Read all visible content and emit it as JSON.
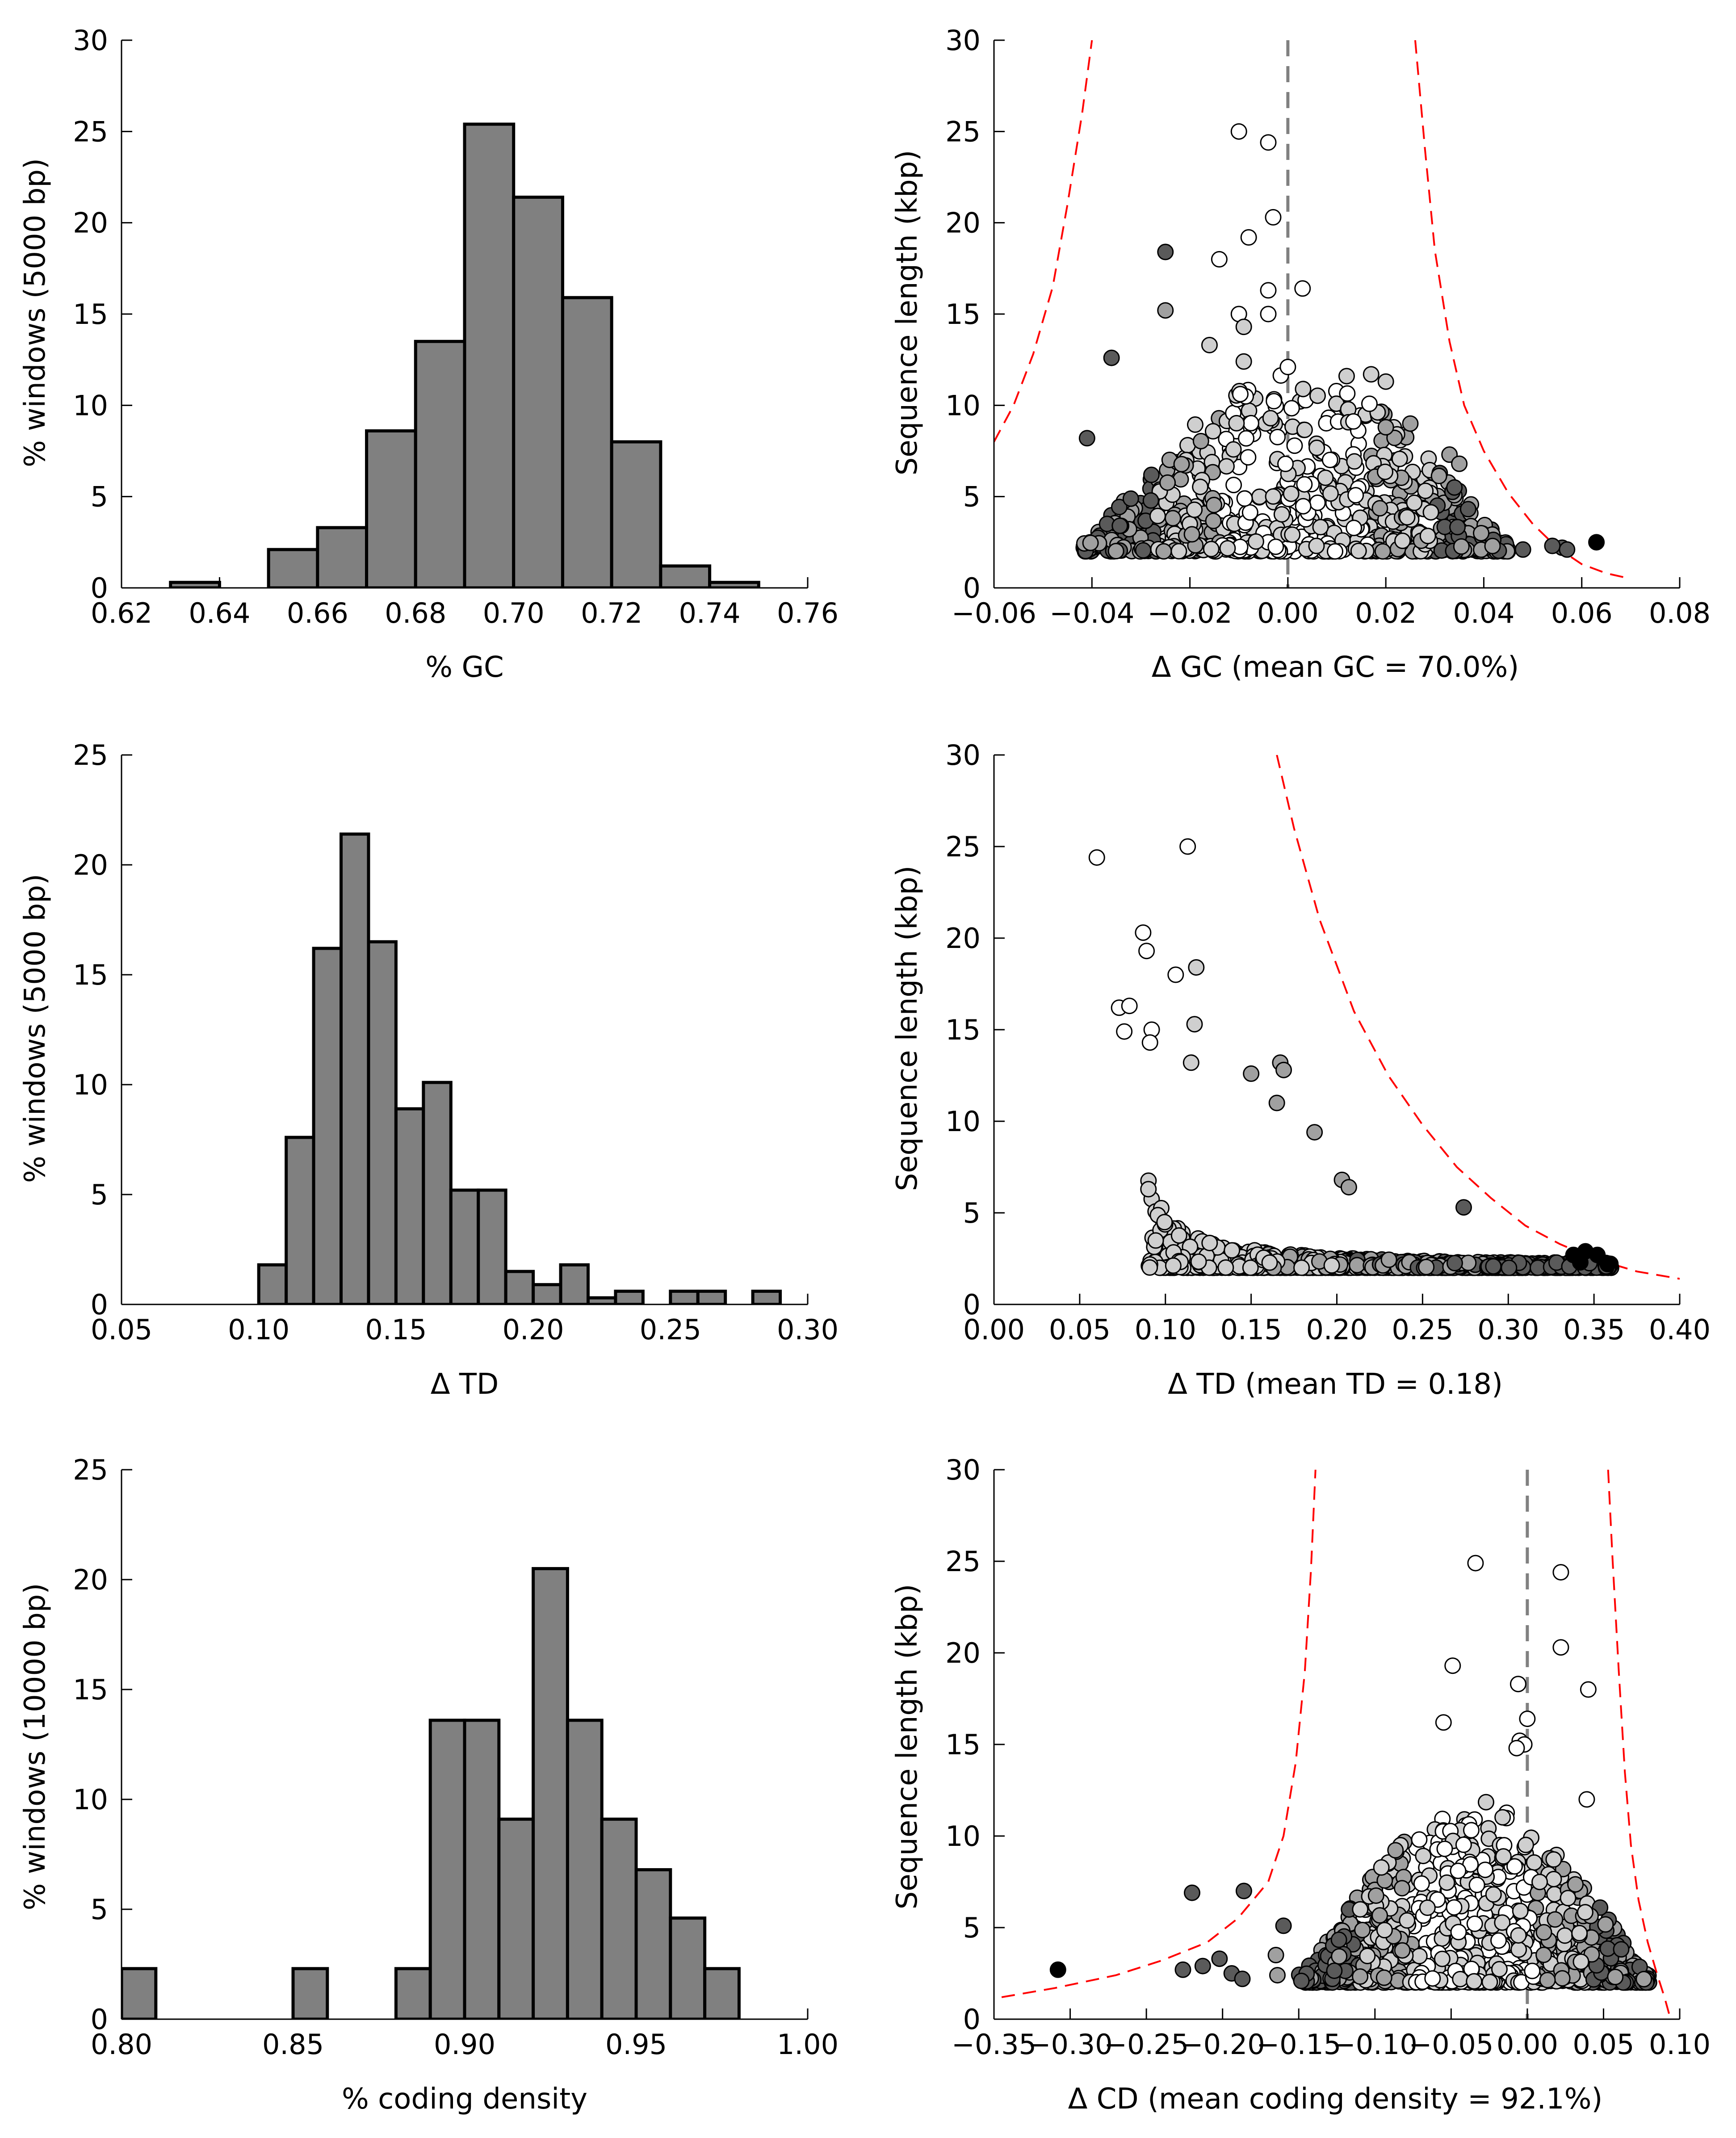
{
  "chart_data": [
    {
      "id": "gc-hist",
      "type": "bar",
      "xlabel": "% GC",
      "ylabel": "% windows (5000 bp)",
      "xlim": [
        0.62,
        0.76
      ],
      "ylim": [
        0,
        30
      ],
      "xticks": [
        "0.62",
        "0.64",
        "0.66",
        "0.68",
        "0.70",
        "0.72",
        "0.74",
        "0.76"
      ],
      "yticks": [
        "0",
        "5",
        "10",
        "15",
        "20",
        "25",
        "30"
      ],
      "bar_color": "#808080",
      "bins": [
        {
          "x0": 0.63,
          "x1": 0.64,
          "value": 0.3
        },
        {
          "x0": 0.65,
          "x1": 0.66,
          "value": 2.1
        },
        {
          "x0": 0.66,
          "x1": 0.67,
          "value": 3.3
        },
        {
          "x0": 0.67,
          "x1": 0.68,
          "value": 8.6
        },
        {
          "x0": 0.68,
          "x1": 0.69,
          "value": 13.5
        },
        {
          "x0": 0.69,
          "x1": 0.7,
          "value": 25.4
        },
        {
          "x0": 0.7,
          "x1": 0.71,
          "value": 21.4
        },
        {
          "x0": 0.71,
          "x1": 0.72,
          "value": 15.9
        },
        {
          "x0": 0.72,
          "x1": 0.73,
          "value": 8.0
        },
        {
          "x0": 0.73,
          "x1": 0.74,
          "value": 1.2
        },
        {
          "x0": 0.74,
          "x1": 0.75,
          "value": 0.3
        }
      ]
    },
    {
      "id": "gc-scatter",
      "type": "scatter",
      "xlabel": "Δ GC (mean GC = 70.0%)",
      "ylabel": "Sequence length (kbp)",
      "xlim": [
        -0.06,
        0.08
      ],
      "ylim": [
        0,
        30
      ],
      "xticks": [
        "−0.06",
        "−0.04",
        "−0.02",
        "0.00",
        "0.02",
        "0.04",
        "0.06",
        "0.08"
      ],
      "yticks": [
        "0",
        "5",
        "10",
        "15",
        "20",
        "25",
        "30"
      ],
      "vline": 0.0,
      "bound_color": "#ff0000",
      "bound_left": [
        [
          -0.06,
          8.0
        ],
        [
          -0.056,
          10.0
        ],
        [
          -0.052,
          12.8
        ],
        [
          -0.048,
          16.5
        ],
        [
          -0.045,
          21.0
        ],
        [
          -0.042,
          26.0
        ],
        [
          -0.04,
          30.0
        ]
      ],
      "bound_right": [
        [
          0.026,
          30.0
        ],
        [
          0.028,
          24.0
        ],
        [
          0.03,
          18.5
        ],
        [
          0.033,
          13.5
        ],
        [
          0.036,
          10.0
        ],
        [
          0.04,
          7.5
        ],
        [
          0.045,
          5.2
        ],
        [
          0.05,
          3.5
        ],
        [
          0.055,
          2.2
        ],
        [
          0.06,
          1.3
        ],
        [
          0.065,
          0.8
        ],
        [
          0.07,
          0.5
        ]
      ],
      "cloud": {
        "xmin": -0.042,
        "xmax": 0.045,
        "ymin": 2.0,
        "ymax": 12.0,
        "count": 780
      },
      "points": [
        {
          "x": -0.01,
          "y": 25.0,
          "tone": "white"
        },
        {
          "x": -0.004,
          "y": 24.4,
          "tone": "white"
        },
        {
          "x": -0.003,
          "y": 20.3,
          "tone": "white"
        },
        {
          "x": -0.008,
          "y": 19.2,
          "tone": "white"
        },
        {
          "x": -0.014,
          "y": 18.0,
          "tone": "white"
        },
        {
          "x": -0.025,
          "y": 18.4,
          "tone": "dark"
        },
        {
          "x": 0.003,
          "y": 16.4,
          "tone": "white"
        },
        {
          "x": -0.004,
          "y": 16.3,
          "tone": "white"
        },
        {
          "x": -0.025,
          "y": 15.2,
          "tone": "gray"
        },
        {
          "x": -0.01,
          "y": 15.0,
          "tone": "white"
        },
        {
          "x": -0.004,
          "y": 15.0,
          "tone": "white"
        },
        {
          "x": -0.009,
          "y": 14.3,
          "tone": "light"
        },
        {
          "x": -0.016,
          "y": 13.3,
          "tone": "light"
        },
        {
          "x": -0.036,
          "y": 12.6,
          "tone": "dark"
        },
        {
          "x": -0.009,
          "y": 12.4,
          "tone": "light"
        },
        {
          "x": 0.0,
          "y": 12.1,
          "tone": "white"
        },
        {
          "x": -0.041,
          "y": 8.2,
          "tone": "dark"
        },
        {
          "x": 0.063,
          "y": 2.5,
          "tone": "black"
        },
        {
          "x": 0.056,
          "y": 2.2,
          "tone": "dark"
        },
        {
          "x": 0.054,
          "y": 2.3,
          "tone": "dark"
        },
        {
          "x": 0.057,
          "y": 2.1,
          "tone": "dark"
        },
        {
          "x": 0.048,
          "y": 2.1,
          "tone": "dark"
        },
        {
          "x": 0.034,
          "y": 5.5,
          "tone": "dark"
        },
        {
          "x": 0.033,
          "y": 7.3,
          "tone": "gray"
        },
        {
          "x": 0.035,
          "y": 6.8,
          "tone": "gray"
        },
        {
          "x": 0.025,
          "y": 9.0,
          "tone": "gray"
        },
        {
          "x": 0.02,
          "y": 8.8,
          "tone": "gray"
        },
        {
          "x": 0.017,
          "y": 11.7,
          "tone": "light"
        },
        {
          "x": 0.012,
          "y": 11.6,
          "tone": "light"
        },
        {
          "x": 0.02,
          "y": 11.3,
          "tone": "light"
        }
      ]
    },
    {
      "id": "td-hist",
      "type": "bar",
      "xlabel": "Δ TD",
      "ylabel": "% windows (5000 bp)",
      "xlim": [
        0.05,
        0.3
      ],
      "ylim": [
        0,
        25
      ],
      "xticks": [
        "0.05",
        "0.10",
        "0.15",
        "0.20",
        "0.25",
        "0.30"
      ],
      "yticks": [
        "0",
        "5",
        "10",
        "15",
        "20",
        "25"
      ],
      "bar_color": "#808080",
      "bins": [
        {
          "x0": 0.1,
          "x1": 0.11,
          "value": 1.8
        },
        {
          "x0": 0.11,
          "x1": 0.12,
          "value": 7.6
        },
        {
          "x0": 0.12,
          "x1": 0.13,
          "value": 16.2
        },
        {
          "x0": 0.13,
          "x1": 0.14,
          "value": 21.4
        },
        {
          "x0": 0.14,
          "x1": 0.15,
          "value": 16.5
        },
        {
          "x0": 0.15,
          "x1": 0.16,
          "value": 8.9
        },
        {
          "x0": 0.16,
          "x1": 0.17,
          "value": 10.1
        },
        {
          "x0": 0.17,
          "x1": 0.18,
          "value": 5.2
        },
        {
          "x0": 0.18,
          "x1": 0.19,
          "value": 5.2
        },
        {
          "x0": 0.19,
          "x1": 0.2,
          "value": 1.5
        },
        {
          "x0": 0.2,
          "x1": 0.21,
          "value": 0.9
        },
        {
          "x0": 0.21,
          "x1": 0.22,
          "value": 1.8
        },
        {
          "x0": 0.22,
          "x1": 0.23,
          "value": 0.3
        },
        {
          "x0": 0.23,
          "x1": 0.24,
          "value": 0.6
        },
        {
          "x0": 0.25,
          "x1": 0.26,
          "value": 0.6
        },
        {
          "x0": 0.26,
          "x1": 0.27,
          "value": 0.6
        },
        {
          "x0": 0.28,
          "x1": 0.29,
          "value": 0.6
        }
      ]
    },
    {
      "id": "td-scatter",
      "type": "scatter",
      "xlabel": "Δ TD (mean TD = 0.18)",
      "ylabel": "Sequence length (kbp)",
      "xlim": [
        0.0,
        0.4
      ],
      "ylim": [
        0,
        30
      ],
      "xticks": [
        "0.00",
        "0.05",
        "0.10",
        "0.15",
        "0.20",
        "0.25",
        "0.30",
        "0.35",
        "0.40"
      ],
      "yticks": [
        "0",
        "5",
        "10",
        "15",
        "20",
        "25",
        "30"
      ],
      "bound_color": "#ff0000",
      "bound_right": [
        [
          0.165,
          30.0
        ],
        [
          0.175,
          26.0
        ],
        [
          0.19,
          21.0
        ],
        [
          0.21,
          16.0
        ],
        [
          0.23,
          12.5
        ],
        [
          0.25,
          9.8
        ],
        [
          0.27,
          7.5
        ],
        [
          0.29,
          5.8
        ],
        [
          0.31,
          4.3
        ],
        [
          0.33,
          3.3
        ],
        [
          0.35,
          2.5
        ],
        [
          0.375,
          1.8
        ],
        [
          0.4,
          1.4
        ]
      ],
      "cloud_curve": "td",
      "cloud": {
        "xmin": 0.09,
        "xmax": 0.36,
        "ymin": 2.0,
        "ymax": 12.0,
        "count": 1300
      },
      "points": [
        {
          "x": 0.06,
          "y": 24.4,
          "tone": "white"
        },
        {
          "x": 0.113,
          "y": 25.0,
          "tone": "white"
        },
        {
          "x": 0.087,
          "y": 20.3,
          "tone": "white"
        },
        {
          "x": 0.089,
          "y": 19.3,
          "tone": "white"
        },
        {
          "x": 0.118,
          "y": 18.4,
          "tone": "light"
        },
        {
          "x": 0.106,
          "y": 18.0,
          "tone": "white"
        },
        {
          "x": 0.073,
          "y": 16.2,
          "tone": "white"
        },
        {
          "x": 0.079,
          "y": 16.3,
          "tone": "white"
        },
        {
          "x": 0.117,
          "y": 15.3,
          "tone": "light"
        },
        {
          "x": 0.092,
          "y": 15.0,
          "tone": "white"
        },
        {
          "x": 0.076,
          "y": 14.9,
          "tone": "white"
        },
        {
          "x": 0.091,
          "y": 14.3,
          "tone": "white"
        },
        {
          "x": 0.115,
          "y": 13.2,
          "tone": "light"
        },
        {
          "x": 0.167,
          "y": 13.2,
          "tone": "gray"
        },
        {
          "x": 0.169,
          "y": 12.8,
          "tone": "gray"
        },
        {
          "x": 0.15,
          "y": 12.6,
          "tone": "gray"
        },
        {
          "x": 0.165,
          "y": 11.0,
          "tone": "gray"
        },
        {
          "x": 0.187,
          "y": 9.4,
          "tone": "gray"
        },
        {
          "x": 0.203,
          "y": 6.8,
          "tone": "gray"
        },
        {
          "x": 0.207,
          "y": 6.4,
          "tone": "gray"
        },
        {
          "x": 0.274,
          "y": 5.3,
          "tone": "dark"
        },
        {
          "x": 0.338,
          "y": 2.7,
          "tone": "black"
        },
        {
          "x": 0.345,
          "y": 2.9,
          "tone": "black"
        },
        {
          "x": 0.352,
          "y": 2.7,
          "tone": "black"
        },
        {
          "x": 0.358,
          "y": 2.2,
          "tone": "black"
        },
        {
          "x": 0.342,
          "y": 2.3,
          "tone": "black"
        }
      ]
    },
    {
      "id": "cd-hist",
      "type": "bar",
      "xlabel": "% coding density",
      "ylabel": "% windows (10000 bp)",
      "xlim": [
        0.8,
        1.0
      ],
      "ylim": [
        0,
        25
      ],
      "xticks": [
        "0.80",
        "0.85",
        "0.90",
        "0.95",
        "1.00"
      ],
      "yticks": [
        "0",
        "5",
        "10",
        "15",
        "20",
        "25"
      ],
      "bar_color": "#808080",
      "bins": [
        {
          "x0": 0.8,
          "x1": 0.81,
          "value": 2.3
        },
        {
          "x0": 0.85,
          "x1": 0.86,
          "value": 2.3
        },
        {
          "x0": 0.88,
          "x1": 0.89,
          "value": 2.3
        },
        {
          "x0": 0.89,
          "x1": 0.9,
          "value": 13.6
        },
        {
          "x0": 0.9,
          "x1": 0.91,
          "value": 13.6
        },
        {
          "x0": 0.91,
          "x1": 0.92,
          "value": 9.1
        },
        {
          "x0": 0.92,
          "x1": 0.93,
          "value": 20.5
        },
        {
          "x0": 0.93,
          "x1": 0.94,
          "value": 13.6
        },
        {
          "x0": 0.94,
          "x1": 0.95,
          "value": 9.1
        },
        {
          "x0": 0.95,
          "x1": 0.96,
          "value": 6.8
        },
        {
          "x0": 0.96,
          "x1": 0.97,
          "value": 4.6
        },
        {
          "x0": 0.97,
          "x1": 0.98,
          "value": 2.3
        }
      ]
    },
    {
      "id": "cd-scatter",
      "type": "scatter",
      "xlabel": "Δ CD (mean coding density = 92.1%)",
      "ylabel": "Sequence length (kbp)",
      "xlim": [
        -0.35,
        0.1
      ],
      "ylim": [
        0,
        30
      ],
      "xticks": [
        "−0.35",
        "−0.30",
        "−0.25",
        "−0.20",
        "−0.15",
        "−0.10",
        "−0.05",
        "0.00",
        "0.05",
        "0.10"
      ],
      "yticks": [
        "0",
        "5",
        "10",
        "15",
        "20",
        "25",
        "30"
      ],
      "vline": 0.0,
      "bound_color": "#ff0000",
      "bound_left": [
        [
          -0.345,
          1.2
        ],
        [
          -0.31,
          1.7
        ],
        [
          -0.27,
          2.4
        ],
        [
          -0.24,
          3.2
        ],
        [
          -0.21,
          4.2
        ],
        [
          -0.19,
          5.5
        ],
        [
          -0.17,
          7.5
        ],
        [
          -0.16,
          10.0
        ],
        [
          -0.152,
          14.0
        ],
        [
          -0.146,
          19.0
        ],
        [
          -0.142,
          24.5
        ],
        [
          -0.139,
          30.0
        ]
      ],
      "bound_right": [
        [
          0.053,
          30.0
        ],
        [
          0.056,
          25.0
        ],
        [
          0.06,
          19.0
        ],
        [
          0.064,
          13.5
        ],
        [
          0.068,
          9.5
        ],
        [
          0.073,
          6.5
        ],
        [
          0.079,
          4.2
        ],
        [
          0.085,
          2.5
        ],
        [
          0.09,
          1.2
        ],
        [
          0.093,
          0.3
        ]
      ],
      "cloud": {
        "xmin": -0.15,
        "xmax": 0.08,
        "ymin": 2.0,
        "ymax": 12.0,
        "count": 950
      },
      "points": [
        {
          "x": -0.034,
          "y": 24.9,
          "tone": "white"
        },
        {
          "x": 0.022,
          "y": 24.4,
          "tone": "white"
        },
        {
          "x": 0.022,
          "y": 20.3,
          "tone": "white"
        },
        {
          "x": -0.049,
          "y": 19.3,
          "tone": "white"
        },
        {
          "x": -0.006,
          "y": 18.3,
          "tone": "white"
        },
        {
          "x": 0.04,
          "y": 18.0,
          "tone": "white"
        },
        {
          "x": 0.0,
          "y": 16.4,
          "tone": "white"
        },
        {
          "x": -0.055,
          "y": 16.2,
          "tone": "white"
        },
        {
          "x": -0.005,
          "y": 15.2,
          "tone": "white"
        },
        {
          "x": -0.002,
          "y": 15.0,
          "tone": "white"
        },
        {
          "x": -0.007,
          "y": 14.8,
          "tone": "white"
        },
        {
          "x": 0.039,
          "y": 12.0,
          "tone": "white"
        },
        {
          "x": -0.308,
          "y": 2.7,
          "tone": "black"
        },
        {
          "x": -0.226,
          "y": 2.7,
          "tone": "dark"
        },
        {
          "x": -0.22,
          "y": 6.9,
          "tone": "dark"
        },
        {
          "x": -0.186,
          "y": 7.0,
          "tone": "dark"
        },
        {
          "x": -0.213,
          "y": 2.9,
          "tone": "dark"
        },
        {
          "x": -0.202,
          "y": 3.3,
          "tone": "dark"
        },
        {
          "x": -0.194,
          "y": 2.5,
          "tone": "dark"
        },
        {
          "x": -0.187,
          "y": 2.2,
          "tone": "dark"
        },
        {
          "x": -0.164,
          "y": 2.4,
          "tone": "gray"
        },
        {
          "x": -0.16,
          "y": 5.1,
          "tone": "dark"
        },
        {
          "x": -0.165,
          "y": 3.5,
          "tone": "gray"
        }
      ]
    }
  ]
}
